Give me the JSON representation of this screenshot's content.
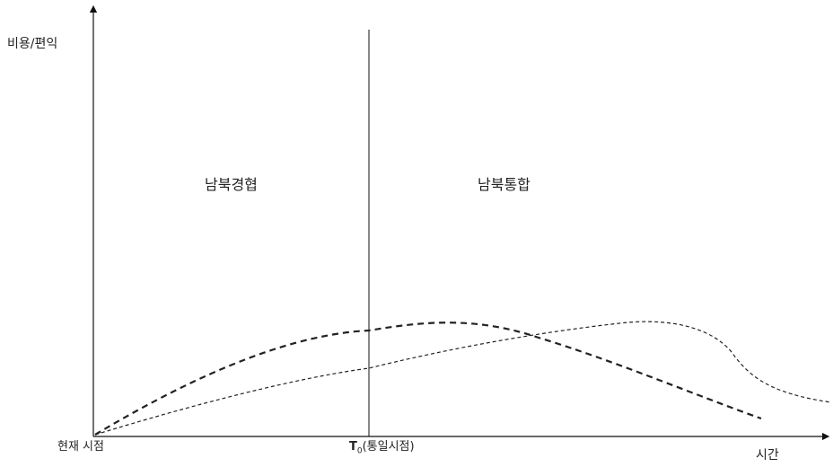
{
  "diagram": {
    "y_axis_label": "비용/편익",
    "x_axis_label": "시간",
    "x_start_label": "현재 시점",
    "t0_symbol": "T",
    "t0_subscript": "0",
    "t0_note": "(통일시점)",
    "region_left": "남북경협",
    "region_right": "남북통합",
    "colors": {
      "axis": "#111111",
      "curves": "#222222",
      "text": "#222222"
    },
    "curves": [
      {
        "style": "dashed-heavy"
      },
      {
        "style": "dashed-light"
      }
    ]
  }
}
